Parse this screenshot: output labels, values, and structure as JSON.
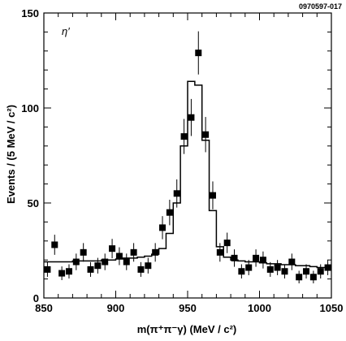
{
  "figure": {
    "id_label": "0970597-017",
    "plot_label_base": "η",
    "plot_label_prime": "′"
  },
  "chart_data": {
    "type": "scatter",
    "title": "",
    "xlabel": "m(π⁺π⁻γ) (MeV / c²)",
    "ylabel": "Events / (5 MeV / c²)",
    "xlim": [
      850,
      1050
    ],
    "ylim": [
      0,
      150
    ],
    "x_ticks": [
      850,
      900,
      950,
      1000,
      1050
    ],
    "y_ticks": [
      0,
      50,
      100,
      150
    ],
    "x_tick_labels": [
      "850",
      "900",
      "950",
      "1000",
      "1050"
    ],
    "y_tick_labels": [
      "0",
      "50",
      "100",
      "150"
    ],
    "grid": false,
    "legend": "none",
    "colors": {
      "ink": "#000000",
      "background": "#ffffff"
    },
    "series": [
      {
        "kind": "points_with_errors",
        "x": [
          852.5,
          857.5,
          862.5,
          867.5,
          872.5,
          877.5,
          882.5,
          887.5,
          892.5,
          897.5,
          902.5,
          907.5,
          912.5,
          917.5,
          922.5,
          927.5,
          932.5,
          937.5,
          942.5,
          947.5,
          952.5,
          957.5,
          962.5,
          967.5,
          972.5,
          977.5,
          982.5,
          987.5,
          992.5,
          997.5,
          1002.5,
          1007.5,
          1012.5,
          1017.5,
          1022.5,
          1027.5,
          1032.5,
          1037.5,
          1042.5,
          1047.5
        ],
        "y": [
          15,
          28,
          13,
          14,
          19,
          24,
          15,
          17,
          19,
          26,
          22,
          19,
          24,
          15,
          17,
          24,
          37,
          45,
          55,
          85,
          95,
          129,
          86,
          54,
          24,
          29,
          21,
          14,
          16,
          21,
          20,
          15,
          16,
          14,
          19,
          11,
          14,
          11,
          14,
          16
        ]
      },
      {
        "kind": "step_histogram",
        "x": [
          850,
          855,
          860,
          865,
          870,
          875,
          880,
          885,
          890,
          895,
          900,
          905,
          910,
          915,
          920,
          925,
          930,
          935,
          940,
          945,
          950,
          955,
          960,
          965,
          970,
          975,
          980,
          985,
          990,
          995,
          1000,
          1005,
          1010,
          1015,
          1020,
          1025,
          1030,
          1035,
          1040,
          1045,
          1050
        ],
        "y": [
          19,
          19,
          19,
          19,
          19.5,
          19.5,
          19.5,
          19.5,
          20,
          20,
          20.5,
          21,
          21,
          21.5,
          22,
          23,
          26,
          34,
          50,
          80,
          114,
          112,
          83,
          46,
          27,
          21.5,
          20,
          19.5,
          19,
          19,
          18.5,
          18,
          18,
          17.5,
          17.5,
          17,
          17,
          16.5,
          16,
          16
        ]
      }
    ]
  }
}
